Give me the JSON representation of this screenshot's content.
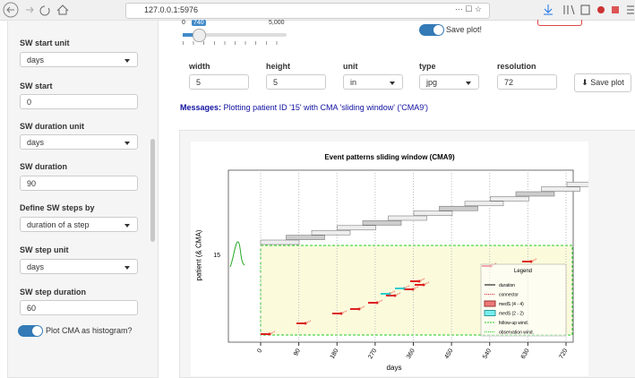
{
  "browser": {
    "url": "127.0.0.1:5976"
  },
  "sidebar": {
    "fields": [
      {
        "label": "SW start unit",
        "value": "days"
      },
      {
        "label": "SW start",
        "value": "0"
      },
      {
        "label": "SW duration unit",
        "value": "days"
      },
      {
        "label": "SW duration",
        "value": "90"
      },
      {
        "label": "Define SW steps by",
        "value": "duration of a step"
      },
      {
        "label": "SW step unit",
        "value": "days"
      },
      {
        "label": "SW step duration",
        "value": "60"
      }
    ],
    "checkbox": "Plot CMA as histogram?"
  },
  "slider": {
    "min": "0",
    "value": "740",
    "max": "5,000"
  },
  "save_toggle": "Save plot!",
  "export": {
    "fields": [
      {
        "label": "width",
        "value": "5"
      },
      {
        "label": "height",
        "value": "5"
      },
      {
        "label": "unit",
        "value": "in"
      },
      {
        "label": "type",
        "value": "jpg"
      },
      {
        "label": "resolution",
        "value": "72"
      }
    ],
    "button": "Save plot"
  },
  "messages": {
    "label": "Messages:",
    "text": "Plotting patient ID '15' with CMA 'sliding window' ('CMA9')"
  },
  "plot": {
    "title": "Event patterns sliding window (CMA9)",
    "y_label": "patient (& CMA)",
    "y_tick": "15",
    "x_label": "days",
    "x_ticks": [
      0,
      90,
      180,
      270,
      360,
      450,
      540,
      630,
      720
    ],
    "legend": {
      "title": "Legend",
      "items": [
        "duration",
        "connector",
        "medS (4 - 4)",
        "medS (2 - 2)",
        "follow-up wind.",
        "observation wind."
      ]
    }
  }
}
